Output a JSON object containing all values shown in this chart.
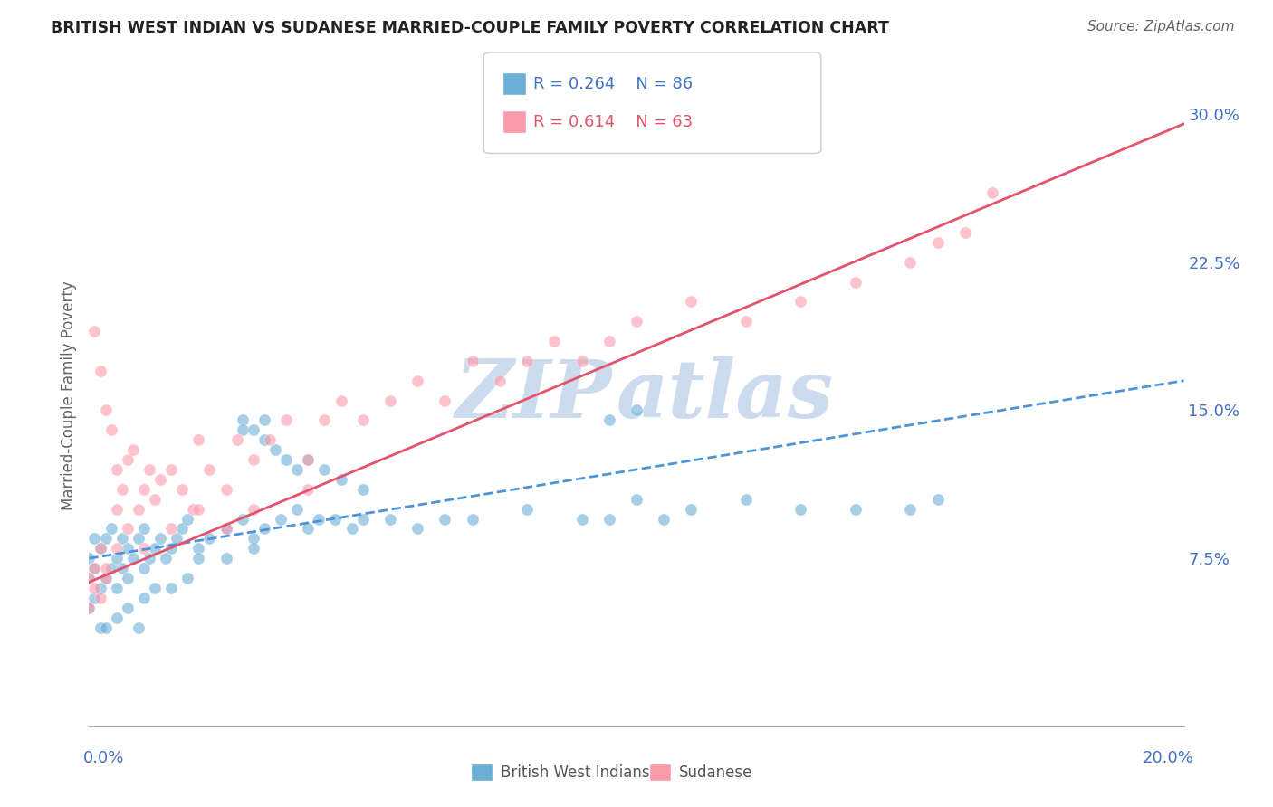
{
  "title": "BRITISH WEST INDIAN VS SUDANESE MARRIED-COUPLE FAMILY POVERTY CORRELATION CHART",
  "source": "Source: ZipAtlas.com",
  "ylabel": "Married-Couple Family Poverty",
  "xmin": 0.0,
  "xmax": 0.2,
  "ymin": -0.01,
  "ymax": 0.325,
  "legend_blue_r": "R = 0.264",
  "legend_blue_n": "N = 86",
  "legend_pink_r": "R = 0.614",
  "legend_pink_n": "N = 63",
  "label_blue": "British West Indians",
  "label_pink": "Sudanese",
  "scatter_blue_color": "#6baed6",
  "scatter_pink_color": "#fc9aaa",
  "trend_blue_color": "#4d94d9",
  "trend_pink_color": "#e3536b",
  "watermark_color": "#ccdcee",
  "background_color": "#ffffff",
  "grid_color": "#cccccc",
  "blue_x": [
    0.0,
    0.0,
    0.0,
    0.001,
    0.001,
    0.001,
    0.002,
    0.002,
    0.003,
    0.003,
    0.004,
    0.004,
    0.005,
    0.005,
    0.006,
    0.006,
    0.007,
    0.007,
    0.008,
    0.009,
    0.01,
    0.01,
    0.011,
    0.012,
    0.013,
    0.014,
    0.015,
    0.016,
    0.017,
    0.018,
    0.02,
    0.022,
    0.025,
    0.028,
    0.03,
    0.032,
    0.035,
    0.038,
    0.04,
    0.042,
    0.045,
    0.048,
    0.05,
    0.055,
    0.06,
    0.065,
    0.07,
    0.08,
    0.09,
    0.095,
    0.1,
    0.105,
    0.11,
    0.12,
    0.13,
    0.14,
    0.15,
    0.155,
    0.002,
    0.003,
    0.005,
    0.007,
    0.009,
    0.01,
    0.012,
    0.015,
    0.018,
    0.02,
    0.025,
    0.03,
    0.028,
    0.032,
    0.095,
    0.1,
    0.028,
    0.03,
    0.032,
    0.034,
    0.036,
    0.038,
    0.04,
    0.043,
    0.046,
    0.05
  ],
  "blue_y": [
    0.05,
    0.065,
    0.075,
    0.055,
    0.07,
    0.085,
    0.06,
    0.08,
    0.065,
    0.085,
    0.07,
    0.09,
    0.06,
    0.075,
    0.07,
    0.085,
    0.065,
    0.08,
    0.075,
    0.085,
    0.07,
    0.09,
    0.075,
    0.08,
    0.085,
    0.075,
    0.08,
    0.085,
    0.09,
    0.095,
    0.08,
    0.085,
    0.09,
    0.095,
    0.085,
    0.09,
    0.095,
    0.1,
    0.09,
    0.095,
    0.095,
    0.09,
    0.095,
    0.095,
    0.09,
    0.095,
    0.095,
    0.1,
    0.095,
    0.095,
    0.105,
    0.095,
    0.1,
    0.105,
    0.1,
    0.1,
    0.1,
    0.105,
    0.04,
    0.04,
    0.045,
    0.05,
    0.04,
    0.055,
    0.06,
    0.06,
    0.065,
    0.075,
    0.075,
    0.08,
    0.145,
    0.145,
    0.145,
    0.15,
    0.14,
    0.14,
    0.135,
    0.13,
    0.125,
    0.12,
    0.125,
    0.12,
    0.115,
    0.11
  ],
  "pink_x": [
    0.0,
    0.0,
    0.001,
    0.001,
    0.002,
    0.002,
    0.003,
    0.003,
    0.004,
    0.005,
    0.005,
    0.006,
    0.007,
    0.008,
    0.009,
    0.01,
    0.011,
    0.012,
    0.013,
    0.015,
    0.017,
    0.019,
    0.02,
    0.022,
    0.025,
    0.027,
    0.03,
    0.033,
    0.036,
    0.04,
    0.043,
    0.046,
    0.05,
    0.055,
    0.06,
    0.065,
    0.07,
    0.075,
    0.08,
    0.085,
    0.09,
    0.095,
    0.1,
    0.11,
    0.12,
    0.13,
    0.14,
    0.15,
    0.155,
    0.16,
    0.165,
    0.001,
    0.002,
    0.003,
    0.005,
    0.007,
    0.01,
    0.015,
    0.02,
    0.025,
    0.03,
    0.04
  ],
  "pink_y": [
    0.05,
    0.065,
    0.19,
    0.06,
    0.17,
    0.055,
    0.15,
    0.065,
    0.14,
    0.1,
    0.12,
    0.11,
    0.125,
    0.13,
    0.1,
    0.11,
    0.12,
    0.105,
    0.115,
    0.12,
    0.11,
    0.1,
    0.135,
    0.12,
    0.11,
    0.135,
    0.125,
    0.135,
    0.145,
    0.125,
    0.145,
    0.155,
    0.145,
    0.155,
    0.165,
    0.155,
    0.175,
    0.165,
    0.175,
    0.185,
    0.175,
    0.185,
    0.195,
    0.205,
    0.195,
    0.205,
    0.215,
    0.225,
    0.235,
    0.24,
    0.26,
    0.07,
    0.08,
    0.07,
    0.08,
    0.09,
    0.08,
    0.09,
    0.1,
    0.09,
    0.1,
    0.11
  ],
  "blue_trend_x": [
    0.0,
    0.2
  ],
  "blue_trend_y": [
    0.075,
    0.165
  ],
  "pink_trend_x": [
    0.0,
    0.2
  ],
  "pink_trend_y": [
    0.063,
    0.295
  ]
}
